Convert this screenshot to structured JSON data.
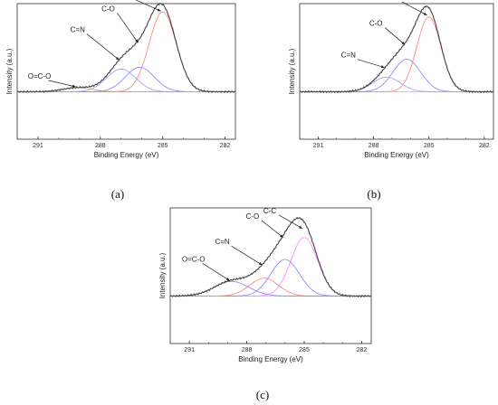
{
  "chart_data": [
    {
      "id": "a",
      "caption": "(a)",
      "type": "line",
      "xlabel": "Binding Energy (eV)",
      "ylabel": "Intensity (a.u.)",
      "xlim": [
        292,
        281.5
      ],
      "x_reversed": true,
      "x_ticks": [
        291,
        288,
        285,
        282
      ],
      "x_tick_labels": [
        "291",
        "288",
        "285",
        "282"
      ],
      "components": [
        {
          "label": "C-C",
          "center": 285.0,
          "height": 0.98,
          "sigma": 0.65,
          "color": "#ff8080"
        },
        {
          "label": "C-O",
          "center": 286.1,
          "height": 0.3,
          "sigma": 0.7,
          "color": "#8080ff"
        },
        {
          "label": "C=N",
          "center": 287.0,
          "height": 0.28,
          "sigma": 0.7,
          "color": "#9a9aff"
        },
        {
          "label": "O=C-O",
          "center": 289.1,
          "height": 0.05,
          "sigma": 0.7,
          "color": "#c8a060"
        }
      ],
      "annotations": [
        {
          "text": "C-C",
          "x": 285.0
        },
        {
          "text": "C-O",
          "x": 286.1
        },
        {
          "text": "C=N",
          "x": 287.0
        },
        {
          "text": "O=C-O",
          "x": 289.1
        }
      ]
    },
    {
      "id": "b",
      "caption": "(b)",
      "type": "line",
      "xlabel": "Binding Energy (eV)",
      "ylabel": "Intensity (a.u.)",
      "xlim": [
        292,
        281.5
      ],
      "x_reversed": true,
      "x_ticks": [
        291,
        288,
        285,
        282
      ],
      "x_tick_labels": [
        "291",
        "288",
        "285",
        "282"
      ],
      "components": [
        {
          "label": "C-C",
          "center": 285.0,
          "height": 0.92,
          "sigma": 0.65,
          "color": "#ff8080"
        },
        {
          "label": "C-O",
          "center": 286.2,
          "height": 0.4,
          "sigma": 0.75,
          "color": "#8080ff"
        },
        {
          "label": "C=N",
          "center": 287.3,
          "height": 0.18,
          "sigma": 0.75,
          "color": "#9a9aff"
        }
      ],
      "annotations": [
        {
          "text": "C-C",
          "x": 285.0
        },
        {
          "text": "C-O",
          "x": 286.2
        },
        {
          "text": "C=N",
          "x": 287.3
        }
      ]
    },
    {
      "id": "c",
      "caption": "(c)",
      "type": "line",
      "xlabel": "Binding Energy (eV)",
      "ylabel": "Intensity (a.u.)",
      "xlim": [
        292,
        281.5
      ],
      "x_reversed": true,
      "x_ticks": [
        291,
        288,
        285,
        282
      ],
      "x_tick_labels": [
        "291",
        "288",
        "285",
        "282"
      ],
      "components": [
        {
          "label": "C-C",
          "center": 285.0,
          "height": 0.72,
          "sigma": 0.7,
          "color": "#ff80ff"
        },
        {
          "label": "C-O",
          "center": 286.0,
          "height": 0.45,
          "sigma": 0.75,
          "color": "#8080ff"
        },
        {
          "label": "C=N",
          "center": 287.1,
          "height": 0.22,
          "sigma": 0.75,
          "color": "#ff8080"
        },
        {
          "label": "O=C-O",
          "center": 288.8,
          "height": 0.18,
          "sigma": 0.9,
          "color": "#8080ff"
        }
      ],
      "annotations": [
        {
          "text": "C-C",
          "x": 285.0
        },
        {
          "text": "C-O",
          "x": 286.0
        },
        {
          "text": "C=N",
          "x": 287.1
        },
        {
          "text": "O=C-O",
          "x": 288.8
        }
      ]
    }
  ],
  "colors": {
    "envelope": "#444444",
    "baseline": "#c8c870",
    "axis": "#333333",
    "arrow": "#222222"
  }
}
